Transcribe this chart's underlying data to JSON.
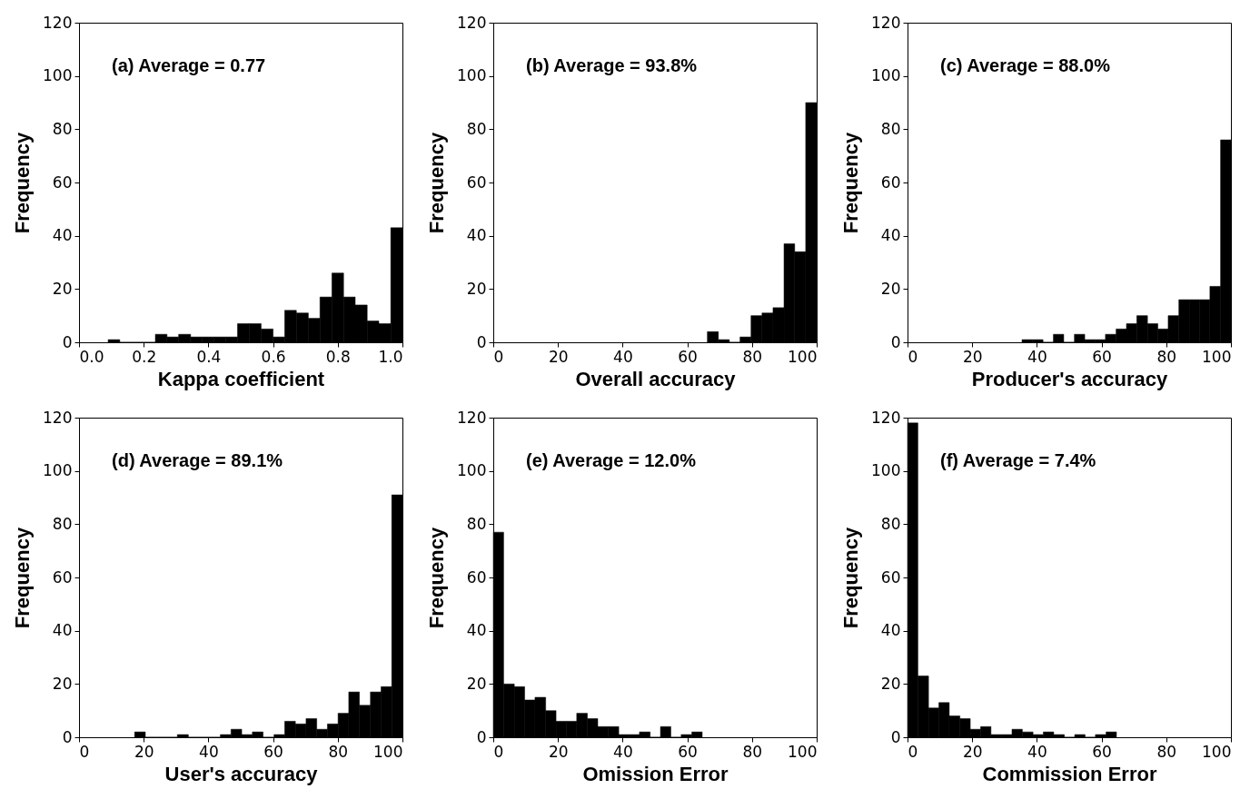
{
  "chart_data": [
    {
      "type": "histogram",
      "bins": [
        0.09,
        0.126,
        0.163,
        0.199,
        0.236,
        0.272,
        0.308,
        0.345,
        0.381,
        0.418,
        0.454,
        0.49,
        0.527,
        0.563,
        0.6,
        0.636,
        0.672,
        0.709,
        0.745,
        0.782,
        0.818,
        0.854,
        0.891,
        0.927,
        0.964,
        1.0
      ],
      "values": [
        1,
        0,
        0,
        0,
        3,
        2,
        3,
        2,
        2,
        2,
        2,
        7,
        7,
        5,
        2,
        12,
        11,
        9,
        17,
        26,
        17,
        14,
        8,
        7,
        43
      ],
      "color": "#000000",
      "xlabel": "Kappa coefficient",
      "ylabel": "Frequency",
      "xlim": [
        0,
        1
      ],
      "xticks": [
        {
          "value": 0,
          "label": "0.0"
        },
        0.2,
        0.4,
        0.6,
        0.8,
        {
          "value": 1,
          "label": "1.0"
        }
      ],
      "ylim": [
        0,
        120
      ],
      "yticks": [
        0,
        20,
        40,
        60,
        80,
        100,
        120
      ],
      "annotations": [
        "(a) Average = 0.77"
      ]
    },
    {
      "type": "histogram",
      "bins": [
        66.2,
        69.6,
        73.0,
        76.3,
        79.7,
        83.1,
        86.5,
        89.9,
        93.2,
        96.6,
        100
      ],
      "values": [
        4,
        1,
        0,
        2,
        10,
        11,
        13,
        37,
        34,
        90
      ],
      "color": "#000000",
      "xlabel": "Overall accuracy",
      "ylabel": "Frequency",
      "xlim": [
        0,
        100
      ],
      "xticks": [
        0,
        20,
        40,
        60,
        80,
        100
      ],
      "ylim": [
        0,
        120
      ],
      "yticks": [
        0,
        20,
        40,
        60,
        80,
        100,
        120
      ],
      "annotations": [
        "(b) Average = 93.8%"
      ]
    },
    {
      "type": "histogram",
      "bins": [
        35.4,
        38.6,
        41.9,
        45.1,
        48.3,
        51.6,
        54.8,
        58.0,
        61.2,
        64.5,
        67.7,
        70.9,
        74.2,
        77.4,
        80.6,
        83.9,
        87.1,
        90.3,
        93.5,
        96.8,
        100
      ],
      "values": [
        1,
        1,
        0,
        3,
        0,
        3,
        1,
        1,
        3,
        5,
        7,
        10,
        7,
        5,
        10,
        16,
        16,
        16,
        21,
        76
      ],
      "color": "#000000",
      "xlabel": "Producer's accuracy",
      "ylabel": "Frequency",
      "xlim": [
        0,
        100
      ],
      "xticks": [
        0,
        20,
        40,
        60,
        80,
        100
      ],
      "ylim": [
        0,
        120
      ],
      "yticks": [
        0,
        20,
        40,
        60,
        80,
        100,
        120
      ],
      "annotations": [
        "(c) Average = 88.0%"
      ]
    },
    {
      "type": "histogram",
      "bins": [
        17.2,
        20.5,
        23.8,
        27.1,
        30.4,
        33.8,
        37.1,
        40.4,
        43.7,
        47.0,
        50.3,
        53.6,
        56.9,
        60.3,
        63.6,
        66.9,
        70.2,
        73.5,
        76.8,
        80.1,
        83.4,
        86.7,
        90.1,
        93.4,
        96.7,
        100
      ],
      "values": [
        2,
        0,
        0,
        0,
        1,
        0,
        0,
        0,
        1,
        3,
        1,
        2,
        0,
        1,
        6,
        5,
        7,
        3,
        5,
        9,
        17,
        12,
        17,
        19,
        91
      ],
      "color": "#000000",
      "xlabel": "User's accuracy",
      "ylabel": "Frequency",
      "xlim": [
        0,
        100
      ],
      "xticks": [
        0,
        20,
        40,
        60,
        80,
        100
      ],
      "ylim": [
        0,
        120
      ],
      "yticks": [
        0,
        20,
        40,
        60,
        80,
        100,
        120
      ],
      "annotations": [
        "(d) Average = 89.1%"
      ]
    },
    {
      "type": "histogram",
      "bins": [
        0,
        3.2,
        6.5,
        9.7,
        12.9,
        16.2,
        19.4,
        22.6,
        25.8,
        29.1,
        32.3,
        35.5,
        38.8,
        42.0,
        45.2,
        48.5,
        51.7,
        54.9,
        58.1,
        61.4,
        64.6
      ],
      "values": [
        77,
        20,
        19,
        14,
        15,
        10,
        6,
        6,
        9,
        7,
        4,
        4,
        1,
        1,
        2,
        0,
        4,
        0,
        1,
        2
      ],
      "color": "#000000",
      "xlabel": "Omission Error",
      "ylabel": "Frequency",
      "xlim": [
        0,
        100
      ],
      "xticks": [
        0,
        20,
        40,
        60,
        80,
        100
      ],
      "ylim": [
        0,
        120
      ],
      "yticks": [
        0,
        20,
        40,
        60,
        80,
        100,
        120
      ],
      "annotations": [
        "(e) Average = 12.0%"
      ]
    },
    {
      "type": "histogram",
      "bins": [
        0,
        3.2,
        6.5,
        9.7,
        12.9,
        16.2,
        19.4,
        22.6,
        25.8,
        29.1,
        32.3,
        35.5,
        38.8,
        42.0,
        45.2,
        48.5,
        51.7,
        54.9,
        58.1,
        61.4,
        64.6
      ],
      "values": [
        118,
        23,
        11,
        13,
        8,
        7,
        3,
        4,
        1,
        1,
        3,
        2,
        1,
        2,
        1,
        0,
        1,
        0,
        1,
        2
      ],
      "color": "#000000",
      "xlabel": "Commission Error",
      "ylabel": "Frequency",
      "xlim": [
        0,
        100
      ],
      "xticks": [
        0,
        20,
        40,
        60,
        80,
        100
      ],
      "ylim": [
        0,
        120
      ],
      "yticks": [
        0,
        20,
        40,
        60,
        80,
        100,
        120
      ],
      "annotations": [
        "(f) Average = 7.4%"
      ]
    }
  ]
}
